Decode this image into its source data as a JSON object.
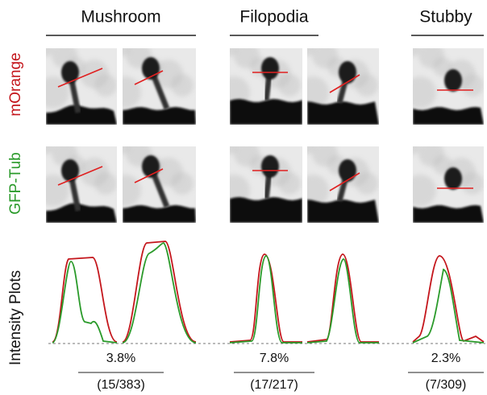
{
  "columns": [
    {
      "title": "Mushroom",
      "percent": "3.8%",
      "fraction": "(15/383)"
    },
    {
      "title": "Filopodia",
      "percent": "7.8%",
      "fraction": "(17/217)"
    },
    {
      "title": "Stubby",
      "percent": "2.3%",
      "fraction": "(7/309)"
    }
  ],
  "row_labels": [
    "mOrange",
    "GFP-Tub",
    "Intensity Plots"
  ]
}
